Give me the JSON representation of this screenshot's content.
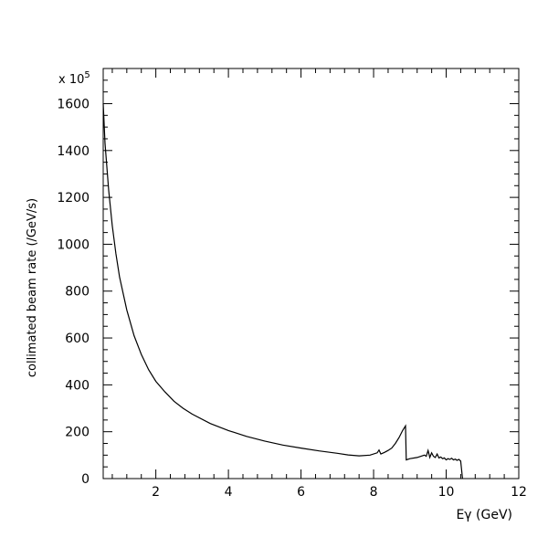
{
  "chart_data": {
    "type": "line",
    "title": "",
    "xlabel": "Eγ (GeV)",
    "ylabel": "collimated beam rate (/GeV/s)",
    "y_multiplier": "x 10",
    "y_multiplier_exponent": "5",
    "xlim": [
      0.55,
      12
    ],
    "ylim": [
      0,
      1750
    ],
    "x_ticks": [
      "2",
      "4",
      "6",
      "8",
      "10",
      "12"
    ],
    "y_ticks": [
      "0",
      "200",
      "400",
      "600",
      "800",
      "1000",
      "1200",
      "1400",
      "1600"
    ],
    "grid": false,
    "legend": "none",
    "line_color": "#000000",
    "series": [
      {
        "x": [
          0.55,
          0.6,
          0.7,
          0.8,
          0.9,
          1.0,
          1.2,
          1.4,
          1.6,
          1.8,
          2.0,
          2.25,
          2.5,
          2.75,
          3.0,
          3.5,
          4.0,
          4.5,
          5.0,
          5.5,
          6.0,
          6.5,
          7.0,
          7.3,
          7.6,
          7.9,
          8.1,
          8.15,
          8.2,
          8.3,
          8.4,
          8.5,
          8.6,
          8.7,
          8.8,
          8.88,
          8.9,
          9.0,
          9.2,
          9.4,
          9.45,
          9.5,
          9.55,
          9.6,
          9.65,
          9.7,
          9.75,
          9.8,
          9.85,
          9.9,
          9.95,
          10.0,
          10.05,
          10.1,
          10.15,
          10.2,
          10.25,
          10.3,
          10.35,
          10.4,
          10.45
        ],
        "y": [
          1600,
          1430,
          1230,
          1080,
          960,
          860,
          720,
          610,
          530,
          465,
          415,
          370,
          330,
          300,
          275,
          235,
          205,
          180,
          160,
          143,
          130,
          118,
          108,
          101,
          97,
          100,
          110,
          122,
          105,
          112,
          120,
          130,
          150,
          175,
          205,
          225,
          80,
          85,
          90,
          100,
          95,
          120,
          90,
          110,
          95,
          90,
          105,
          88,
          92,
          85,
          88,
          80,
          85,
          82,
          87,
          80,
          83,
          78,
          82,
          75,
          0
        ]
      }
    ]
  }
}
